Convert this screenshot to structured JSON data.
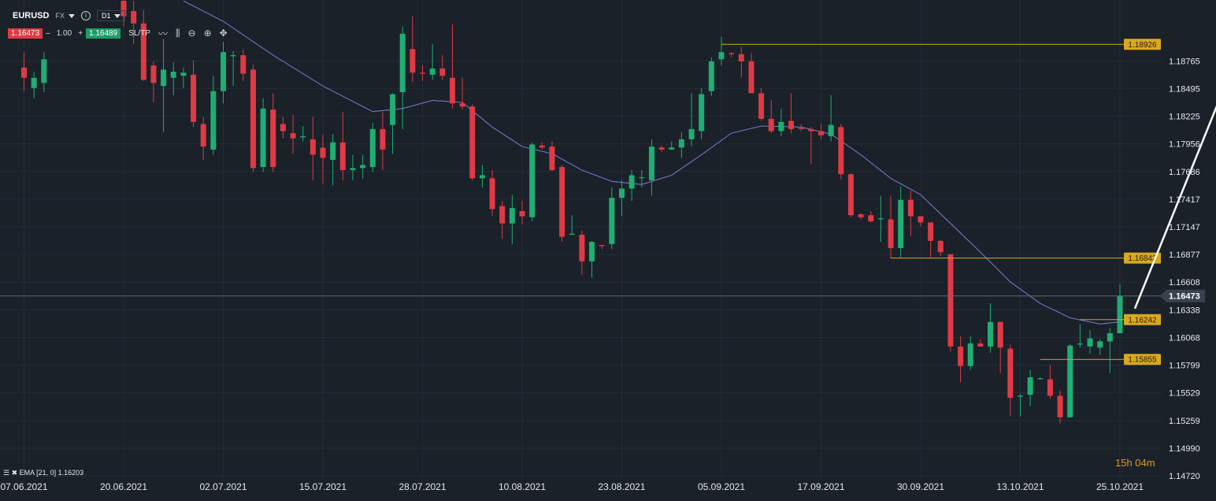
{
  "toolbar": {
    "symbol": "EURUSD",
    "market": "FX",
    "timeframe": "D1",
    "sell_price": "1.16473",
    "minus": "–",
    "quantity": "1.00",
    "plus": "+",
    "buy_price": "1.16489",
    "sl_tp": "SL/TP",
    "icons": [
      "caret-down-icon",
      "info-icon",
      "line-chart-icon",
      "candles-icon",
      "zoom-out-icon",
      "zoom-in-icon",
      "move-icon"
    ]
  },
  "indicator": {
    "label": "EMA [21, 0] 1.16203"
  },
  "timer": "15h 04m",
  "colors": {
    "background": "#1a2129",
    "up": "#1fae73",
    "down": "#e03a45",
    "ema": "#7079c4",
    "level": "#d8a81f",
    "grid": "#232c36"
  },
  "chart_data": {
    "type": "candlestick",
    "instrument": "EURUSD",
    "timeframe": "D1",
    "ylim": [
      1.1472,
      1.1932
    ],
    "y_ticks": [
      "1.18765",
      "1.18495",
      "1.18225",
      "1.17956",
      "1.17686",
      "1.17417",
      "1.17147",
      "1.16877",
      "1.16608",
      "1.16338",
      "1.16068",
      "1.15799",
      "1.15529",
      "1.15259",
      "1.14990",
      "1.14720"
    ],
    "x_ticks": [
      {
        "label": "07.06.2021",
        "i": -10
      },
      {
        "label": "20.06.2021",
        "i": 0
      },
      {
        "label": "02.07.2021",
        "i": 10
      },
      {
        "label": "15.07.2021",
        "i": 20
      },
      {
        "label": "28.07.2021",
        "i": 30
      },
      {
        "label": "10.08.2021",
        "i": 40
      },
      {
        "label": "23.08.2021",
        "i": 50
      },
      {
        "label": "05.09.2021",
        "i": 60
      },
      {
        "label": "17.09.2021",
        "i": 70
      },
      {
        "label": "30.09.2021",
        "i": 80
      },
      {
        "label": "13.10.2021",
        "i": 90
      },
      {
        "label": "25.10.2021",
        "i": 100
      }
    ],
    "candles": [
      {
        "i": -10,
        "o": 1.187,
        "h": 1.1885,
        "l": 1.1847,
        "c": 1.186
      },
      {
        "i": -9,
        "o": 1.185,
        "h": 1.1866,
        "l": 1.184,
        "c": 1.186
      },
      {
        "i": -8,
        "o": 1.1855,
        "h": 1.1885,
        "l": 1.1846,
        "c": 1.1878
      },
      {
        "i": 0,
        "o": 1.1935,
        "h": 1.1938,
        "l": 1.191,
        "c": 1.192
      },
      {
        "i": 1,
        "o": 1.1925,
        "h": 1.1935,
        "l": 1.1893,
        "c": 1.1913
      },
      {
        "i": 2,
        "o": 1.1913,
        "h": 1.1926,
        "l": 1.1857,
        "c": 1.1858
      },
      {
        "i": 3,
        "o": 1.1872,
        "h": 1.1876,
        "l": 1.1836,
        "c": 1.1855
      },
      {
        "i": 4,
        "o": 1.1852,
        "h": 1.1898,
        "l": 1.1807,
        "c": 1.1868
      },
      {
        "i": 5,
        "o": 1.186,
        "h": 1.1875,
        "l": 1.1843,
        "c": 1.1866
      },
      {
        "i": 6,
        "o": 1.1862,
        "h": 1.187,
        "l": 1.185,
        "c": 1.1865
      },
      {
        "i": 7,
        "o": 1.1863,
        "h": 1.1877,
        "l": 1.1812,
        "c": 1.1817
      },
      {
        "i": 8,
        "o": 1.1815,
        "h": 1.1822,
        "l": 1.178,
        "c": 1.1793
      },
      {
        "i": 9,
        "o": 1.179,
        "h": 1.1862,
        "l": 1.1785,
        "c": 1.1847
      },
      {
        "i": 10,
        "o": 1.1847,
        "h": 1.1895,
        "l": 1.1835,
        "c": 1.1885
      },
      {
        "i": 11,
        "o": 1.1881,
        "h": 1.1886,
        "l": 1.1852,
        "c": 1.1882
      },
      {
        "i": 12,
        "o": 1.1882,
        "h": 1.1888,
        "l": 1.1857,
        "c": 1.1864
      },
      {
        "i": 13,
        "o": 1.1868,
        "h": 1.1873,
        "l": 1.1768,
        "c": 1.1772
      },
      {
        "i": 14,
        "o": 1.1773,
        "h": 1.184,
        "l": 1.1768,
        "c": 1.183
      },
      {
        "i": 15,
        "o": 1.1829,
        "h": 1.1845,
        "l": 1.1768,
        "c": 1.1773
      },
      {
        "i": 16,
        "o": 1.1815,
        "h": 1.1822,
        "l": 1.1801,
        "c": 1.1808
      },
      {
        "i": 17,
        "o": 1.1806,
        "h": 1.1824,
        "l": 1.1786,
        "c": 1.1801
      },
      {
        "i": 18,
        "o": 1.1802,
        "h": 1.1813,
        "l": 1.1798,
        "c": 1.1803
      },
      {
        "i": 19,
        "o": 1.18,
        "h": 1.1822,
        "l": 1.176,
        "c": 1.1785
      },
      {
        "i": 20,
        "o": 1.1792,
        "h": 1.1805,
        "l": 1.1757,
        "c": 1.1782
      },
      {
        "i": 21,
        "o": 1.178,
        "h": 1.1805,
        "l": 1.1755,
        "c": 1.1797
      },
      {
        "i": 22,
        "o": 1.1797,
        "h": 1.1827,
        "l": 1.176,
        "c": 1.177
      },
      {
        "i": 23,
        "o": 1.177,
        "h": 1.1785,
        "l": 1.176,
        "c": 1.1772
      },
      {
        "i": 24,
        "o": 1.1772,
        "h": 1.1785,
        "l": 1.1762,
        "c": 1.1775
      },
      {
        "i": 25,
        "o": 1.1773,
        "h": 1.1816,
        "l": 1.1768,
        "c": 1.181
      },
      {
        "i": 26,
        "o": 1.181,
        "h": 1.1827,
        "l": 1.177,
        "c": 1.179
      },
      {
        "i": 27,
        "o": 1.1814,
        "h": 1.1845,
        "l": 1.1786,
        "c": 1.1844
      },
      {
        "i": 28,
        "o": 1.1846,
        "h": 1.191,
        "l": 1.181,
        "c": 1.1903
      },
      {
        "i": 29,
        "o": 1.1888,
        "h": 1.192,
        "l": 1.1856,
        "c": 1.1865
      },
      {
        "i": 30,
        "o": 1.1865,
        "h": 1.1872,
        "l": 1.1857,
        "c": 1.1864
      },
      {
        "i": 31,
        "o": 1.1863,
        "h": 1.1893,
        "l": 1.1858,
        "c": 1.1869
      },
      {
        "i": 32,
        "o": 1.1869,
        "h": 1.1882,
        "l": 1.1858,
        "c": 1.1862
      },
      {
        "i": 33,
        "o": 1.186,
        "h": 1.1912,
        "l": 1.183,
        "c": 1.1835
      },
      {
        "i": 34,
        "o": 1.1835,
        "h": 1.186,
        "l": 1.1829,
        "c": 1.1832
      },
      {
        "i": 35,
        "o": 1.1832,
        "h": 1.1834,
        "l": 1.176,
        "c": 1.1762
      },
      {
        "i": 36,
        "o": 1.1762,
        "h": 1.1775,
        "l": 1.1753,
        "c": 1.1765
      },
      {
        "i": 37,
        "o": 1.1762,
        "h": 1.177,
        "l": 1.1725,
        "c": 1.1732
      },
      {
        "i": 38,
        "o": 1.1735,
        "h": 1.174,
        "l": 1.1703,
        "c": 1.1718
      },
      {
        "i": 39,
        "o": 1.1718,
        "h": 1.1746,
        "l": 1.1698,
        "c": 1.1733
      },
      {
        "i": 40,
        "o": 1.173,
        "h": 1.174,
        "l": 1.1717,
        "c": 1.1725
      },
      {
        "i": 41,
        "o": 1.1724,
        "h": 1.1797,
        "l": 1.172,
        "c": 1.1795
      },
      {
        "i": 42,
        "o": 1.1794,
        "h": 1.1797,
        "l": 1.179,
        "c": 1.1792
      },
      {
        "i": 43,
        "o": 1.1793,
        "h": 1.1798,
        "l": 1.1769,
        "c": 1.177
      },
      {
        "i": 44,
        "o": 1.1773,
        "h": 1.1775,
        "l": 1.17,
        "c": 1.1705
      },
      {
        "i": 45,
        "o": 1.1707,
        "h": 1.1726,
        "l": 1.1707,
        "c": 1.1708
      },
      {
        "i": 46,
        "o": 1.1707,
        "h": 1.1711,
        "l": 1.1668,
        "c": 1.1681
      },
      {
        "i": 47,
        "o": 1.1681,
        "h": 1.1701,
        "l": 1.1665,
        "c": 1.17
      },
      {
        "i": 48,
        "o": 1.1697,
        "h": 1.1697,
        "l": 1.1693,
        "c": 1.1696
      },
      {
        "i": 49,
        "o": 1.1698,
        "h": 1.1753,
        "l": 1.1693,
        "c": 1.1743
      },
      {
        "i": 50,
        "o": 1.1743,
        "h": 1.176,
        "l": 1.1725,
        "c": 1.1752
      },
      {
        "i": 51,
        "o": 1.1752,
        "h": 1.177,
        "l": 1.174,
        "c": 1.1765
      },
      {
        "i": 52,
        "o": 1.1763,
        "h": 1.177,
        "l": 1.1753,
        "c": 1.1763
      },
      {
        "i": 53,
        "o": 1.176,
        "h": 1.18,
        "l": 1.1745,
        "c": 1.1793
      },
      {
        "i": 54,
        "o": 1.1792,
        "h": 1.1794,
        "l": 1.1788,
        "c": 1.179
      },
      {
        "i": 55,
        "o": 1.179,
        "h": 1.1798,
        "l": 1.179,
        "c": 1.1792
      },
      {
        "i": 56,
        "o": 1.1792,
        "h": 1.1807,
        "l": 1.1782,
        "c": 1.18
      },
      {
        "i": 57,
        "o": 1.18,
        "h": 1.1845,
        "l": 1.1793,
        "c": 1.181
      },
      {
        "i": 58,
        "o": 1.1808,
        "h": 1.185,
        "l": 1.18,
        "c": 1.1844
      },
      {
        "i": 59,
        "o": 1.1847,
        "h": 1.188,
        "l": 1.1842,
        "c": 1.1876
      },
      {
        "i": 60,
        "o": 1.1878,
        "h": 1.19,
        "l": 1.1872,
        "c": 1.1885
      },
      {
        "i": 61,
        "o": 1.1884,
        "h": 1.1885,
        "l": 1.188,
        "c": 1.1883
      },
      {
        "i": 62,
        "o": 1.1883,
        "h": 1.189,
        "l": 1.186,
        "c": 1.1876
      },
      {
        "i": 63,
        "o": 1.1876,
        "h": 1.1884,
        "l": 1.1846,
        "c": 1.1845
      },
      {
        "i": 64,
        "o": 1.1845,
        "h": 1.185,
        "l": 1.1818,
        "c": 1.182
      },
      {
        "i": 65,
        "o": 1.182,
        "h": 1.1838,
        "l": 1.1806,
        "c": 1.1808
      },
      {
        "i": 66,
        "o": 1.1808,
        "h": 1.183,
        "l": 1.1803,
        "c": 1.1817
      },
      {
        "i": 67,
        "o": 1.1818,
        "h": 1.1845,
        "l": 1.1806,
        "c": 1.181
      },
      {
        "i": 68,
        "o": 1.1811,
        "h": 1.1815,
        "l": 1.1808,
        "c": 1.181
      },
      {
        "i": 69,
        "o": 1.181,
        "h": 1.1812,
        "l": 1.1776,
        "c": 1.1808
      },
      {
        "i": 70,
        "o": 1.1808,
        "h": 1.1815,
        "l": 1.18,
        "c": 1.1804
      },
      {
        "i": 71,
        "o": 1.1803,
        "h": 1.1843,
        "l": 1.1798,
        "c": 1.1814
      },
      {
        "i": 72,
        "o": 1.1812,
        "h": 1.1815,
        "l": 1.1761,
        "c": 1.1766
      },
      {
        "i": 73,
        "o": 1.1766,
        "h": 1.1767,
        "l": 1.1724,
        "c": 1.1726
      },
      {
        "i": 74,
        "o": 1.1727,
        "h": 1.1728,
        "l": 1.1722,
        "c": 1.1724
      },
      {
        "i": 75,
        "o": 1.1726,
        "h": 1.173,
        "l": 1.1719,
        "c": 1.172
      },
      {
        "i": 76,
        "o": 1.1722,
        "h": 1.1745,
        "l": 1.17,
        "c": 1.1723
      },
      {
        "i": 77,
        "o": 1.1722,
        "h": 1.1745,
        "l": 1.1684,
        "c": 1.1694
      },
      {
        "i": 78,
        "o": 1.1694,
        "h": 1.1754,
        "l": 1.1685,
        "c": 1.1741
      },
      {
        "i": 79,
        "o": 1.1741,
        "h": 1.175,
        "l": 1.1706,
        "c": 1.1725
      },
      {
        "i": 80,
        "o": 1.1725,
        "h": 1.1725,
        "l": 1.1715,
        "c": 1.1719
      },
      {
        "i": 81,
        "o": 1.1719,
        "h": 1.1719,
        "l": 1.1685,
        "c": 1.1701
      },
      {
        "i": 82,
        "o": 1.1701,
        "h": 1.1702,
        "l": 1.1686,
        "c": 1.169
      },
      {
        "i": 83,
        "o": 1.1688,
        "h": 1.1688,
        "l": 1.1593,
        "c": 1.1598
      },
      {
        "i": 84,
        "o": 1.1598,
        "h": 1.1608,
        "l": 1.1563,
        "c": 1.1579
      },
      {
        "i": 85,
        "o": 1.1579,
        "h": 1.1608,
        "l": 1.1575,
        "c": 1.1601
      },
      {
        "i": 86,
        "o": 1.1601,
        "h": 1.1605,
        "l": 1.1598,
        "c": 1.1598
      },
      {
        "i": 87,
        "o": 1.1598,
        "h": 1.164,
        "l": 1.1592,
        "c": 1.1622
      },
      {
        "i": 88,
        "o": 1.1622,
        "h": 1.1622,
        "l": 1.1572,
        "c": 1.1597
      },
      {
        "i": 89,
        "o": 1.1596,
        "h": 1.16,
        "l": 1.153,
        "c": 1.1548
      },
      {
        "i": 90,
        "o": 1.155,
        "h": 1.1552,
        "l": 1.153,
        "c": 1.155
      },
      {
        "i": 91,
        "o": 1.1551,
        "h": 1.1575,
        "l": 1.154,
        "c": 1.1568
      },
      {
        "i": 92,
        "o": 1.1567,
        "h": 1.1568,
        "l": 1.1566,
        "c": 1.1567
      },
      {
        "i": 93,
        "o": 1.1566,
        "h": 1.158,
        "l": 1.1547,
        "c": 1.155
      },
      {
        "i": 94,
        "o": 1.155,
        "h": 1.1555,
        "l": 1.1523,
        "c": 1.1529
      },
      {
        "i": 95,
        "o": 1.1529,
        "h": 1.16,
        "l": 1.1529,
        "c": 1.1599
      },
      {
        "i": 96,
        "o": 1.16,
        "h": 1.162,
        "l": 1.1597,
        "c": 1.1601
      },
      {
        "i": 97,
        "o": 1.1598,
        "h": 1.1614,
        "l": 1.1591,
        "c": 1.1606
      },
      {
        "i": 98,
        "o": 1.1597,
        "h": 1.1605,
        "l": 1.159,
        "c": 1.1603
      },
      {
        "i": 99,
        "o": 1.1603,
        "h": 1.1616,
        "l": 1.1572,
        "c": 1.1611
      },
      {
        "i": 100,
        "o": 1.1611,
        "h": 1.1659,
        "l": 1.1611,
        "c": 1.1647
      }
    ],
    "ema": {
      "name": "EMA [21, 0]",
      "value": "1.16203",
      "points": [
        {
          "i": 6,
          "v": 1.1935
        },
        {
          "i": 10,
          "v": 1.1915
        },
        {
          "i": 15,
          "v": 1.1882
        },
        {
          "i": 20,
          "v": 1.1852
        },
        {
          "i": 25,
          "v": 1.1827
        },
        {
          "i": 28,
          "v": 1.183
        },
        {
          "i": 31,
          "v": 1.1838
        },
        {
          "i": 34,
          "v": 1.1836
        },
        {
          "i": 37,
          "v": 1.1812
        },
        {
          "i": 40,
          "v": 1.1793
        },
        {
          "i": 43,
          "v": 1.1786
        },
        {
          "i": 46,
          "v": 1.177
        },
        {
          "i": 49,
          "v": 1.1759
        },
        {
          "i": 52,
          "v": 1.1756
        },
        {
          "i": 55,
          "v": 1.1765
        },
        {
          "i": 58,
          "v": 1.1785
        },
        {
          "i": 61,
          "v": 1.1806
        },
        {
          "i": 64,
          "v": 1.1813
        },
        {
          "i": 68,
          "v": 1.1812
        },
        {
          "i": 71,
          "v": 1.1805
        },
        {
          "i": 74,
          "v": 1.1785
        },
        {
          "i": 77,
          "v": 1.1762
        },
        {
          "i": 80,
          "v": 1.1746
        },
        {
          "i": 83,
          "v": 1.1718
        },
        {
          "i": 86,
          "v": 1.169
        },
        {
          "i": 89,
          "v": 1.1661
        },
        {
          "i": 92,
          "v": 1.164
        },
        {
          "i": 95,
          "v": 1.1626
        },
        {
          "i": 98,
          "v": 1.162
        },
        {
          "i": 100,
          "v": 1.1622
        }
      ]
    },
    "levels": [
      {
        "label": "1.18926",
        "value": 1.18926,
        "start_i": 60
      },
      {
        "label": "1.16842",
        "value": 1.16842,
        "start_i": 77
      },
      {
        "label": "1.16242",
        "value": 1.16242,
        "start_i": 96
      },
      {
        "label": "1.15855",
        "value": 1.15855,
        "start_i": 92
      }
    ],
    "current_price": {
      "label": "1.16473",
      "value": 1.16473
    },
    "arrow": {
      "from_i": 101.5,
      "from_v": 1.1635,
      "to_i": 111.5,
      "to_v": 1.1875
    }
  }
}
